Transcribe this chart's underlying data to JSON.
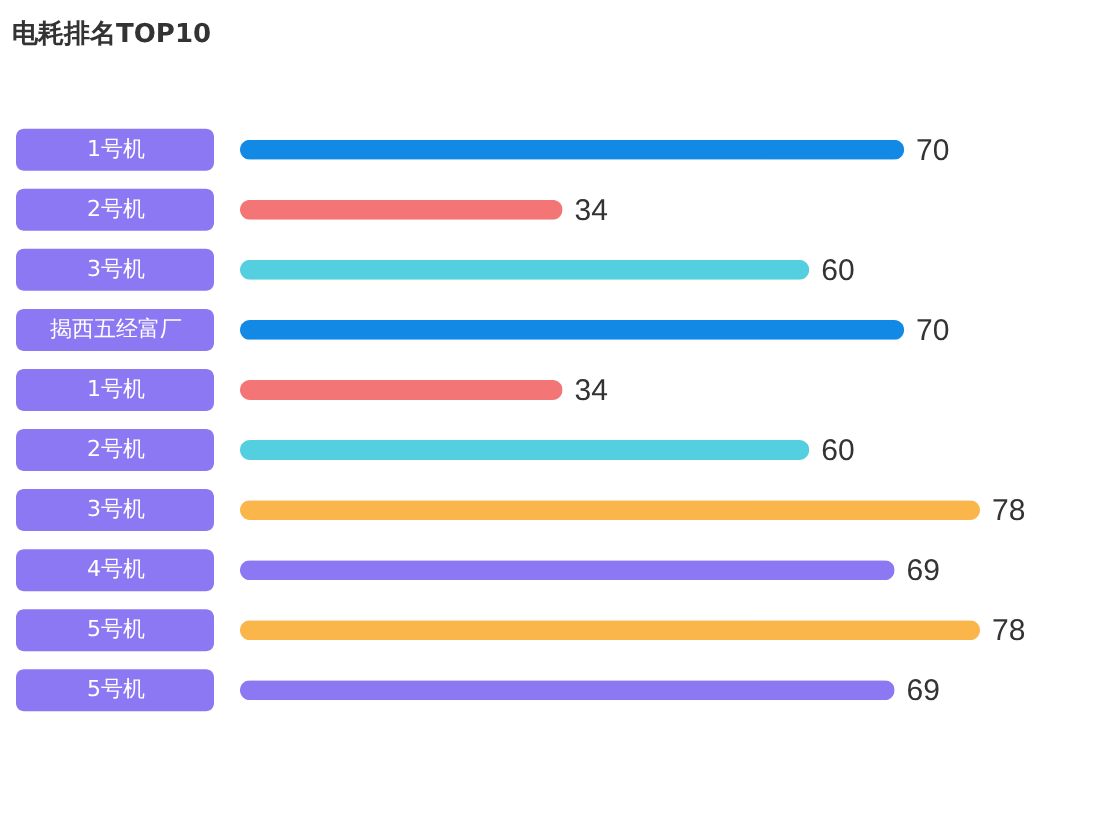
{
  "chart_data": {
    "type": "bar",
    "orientation": "horizontal",
    "title": "电耗排名TOP10",
    "data_labels": true,
    "categories": [
      "1号机",
      "2号机",
      "3号机",
      "揭西五经富厂",
      "1号机",
      "2号机",
      "3号机",
      "4号机",
      "5号机",
      "5号机"
    ],
    "values": [
      70,
      34,
      60,
      70,
      34,
      60,
      78,
      69,
      78,
      69
    ],
    "colors": [
      "#1389e6",
      "#f47575",
      "#53cfe0",
      "#1389e6",
      "#f47575",
      "#53cfe0",
      "#fab54b",
      "#8c78f2",
      "#fab54b",
      "#8c78f2"
    ]
  }
}
